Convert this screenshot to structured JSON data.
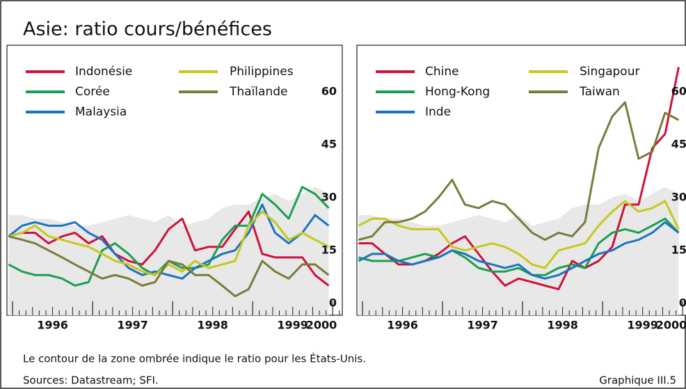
{
  "title": "Asie: ratio cours/bénéfices",
  "note": "Le contour de la zone ombrée indique le ratio pour les États-Unis.",
  "sources": "Sources: Datastream; SFI.",
  "figure_label": "Graphique III.5",
  "chart_data": [
    {
      "type": "line",
      "x": [
        1995.95,
        1996.12,
        1996.28,
        1996.45,
        1996.62,
        1996.78,
        1996.95,
        1997.12,
        1997.28,
        1997.45,
        1997.62,
        1997.78,
        1997.95,
        1998.12,
        1998.28,
        1998.45,
        1998.62,
        1998.78,
        1998.95,
        1999.12,
        1999.28,
        1999.45,
        1999.62,
        1999.78,
        1999.95
      ],
      "xlim": [
        1995.93,
        2000.12
      ],
      "xticks": [
        {
          "value": 1996,
          "label": "1996"
        },
        {
          "value": 1997,
          "label": "1997"
        },
        {
          "value": 1998,
          "label": "1998"
        },
        {
          "value": 1999,
          "label": "1999"
        },
        {
          "value": 2000,
          "label": "2000"
        }
      ],
      "ylim": [
        -3.4,
        73.2
      ],
      "yticks": [
        0,
        15,
        30,
        45,
        60
      ],
      "shaded_area": {
        "color": "#e8e8e8",
        "values": [
          25,
          25,
          24,
          24,
          23,
          22,
          22,
          23,
          24,
          25,
          24,
          23,
          25,
          22,
          23,
          24,
          27,
          28,
          28,
          30,
          31,
          29,
          31,
          33,
          31
        ]
      },
      "series": [
        {
          "name": "Indonésie",
          "color": "#d0103a",
          "values": [
            19,
            20,
            20,
            17,
            19,
            20,
            17,
            19,
            14,
            12,
            11,
            15,
            21,
            24,
            15,
            16,
            16,
            21,
            26,
            14,
            13,
            13,
            13,
            8,
            5
          ]
        },
        {
          "name": "Corée",
          "color": "#1a9e50",
          "values": [
            11,
            9,
            8,
            8,
            7,
            5,
            6,
            15,
            17,
            14,
            10,
            8,
            12,
            10,
            10,
            11,
            18,
            22,
            22,
            31,
            28,
            24,
            33,
            31,
            27
          ]
        },
        {
          "name": "Malaysia",
          "color": "#1a74c0",
          "values": [
            19,
            22,
            23,
            22,
            22,
            23,
            20,
            18,
            14,
            10,
            8,
            9,
            8,
            7,
            10,
            12,
            14,
            15,
            20,
            28,
            20,
            17,
            20,
            25,
            22
          ]
        },
        {
          "name": "Philippines",
          "color": "#c7c81a",
          "values": [
            19,
            20,
            22,
            19,
            18,
            17,
            16,
            14,
            12,
            11,
            9,
            8,
            11,
            9,
            12,
            10,
            11,
            12,
            22,
            26,
            23,
            18,
            20,
            18,
            16
          ]
        },
        {
          "name": "Thaïlande",
          "color": "#7a7a3a",
          "values": [
            19,
            18,
            17,
            15,
            13,
            11,
            9,
            7,
            8,
            7,
            5,
            6,
            12,
            11,
            8,
            8,
            5,
            2,
            4,
            12,
            9,
            7,
            11,
            11,
            8
          ]
        }
      ]
    },
    {
      "type": "line",
      "x": [
        1995.95,
        1996.12,
        1996.28,
        1996.45,
        1996.62,
        1996.78,
        1996.95,
        1997.12,
        1997.28,
        1997.45,
        1997.62,
        1997.78,
        1997.95,
        1998.12,
        1998.28,
        1998.45,
        1998.62,
        1998.78,
        1998.95,
        1999.12,
        1999.28,
        1999.45,
        1999.62,
        1999.78,
        1999.95
      ],
      "xlim": [
        1995.93,
        2000.12
      ],
      "xticks": [
        {
          "value": 1996,
          "label": "1996"
        },
        {
          "value": 1997,
          "label": "1997"
        },
        {
          "value": 1998,
          "label": "1998"
        },
        {
          "value": 1999,
          "label": "1999"
        },
        {
          "value": 2000,
          "label": "2000"
        }
      ],
      "ylim": [
        -3.4,
        73.2
      ],
      "yticks": [
        0,
        15,
        30,
        45,
        60
      ],
      "shaded_area": {
        "color": "#e8e8e8",
        "values": [
          25,
          25,
          24,
          24,
          23,
          22,
          22,
          23,
          24,
          25,
          24,
          23,
          25,
          22,
          23,
          24,
          27,
          28,
          28,
          30,
          31,
          29,
          31,
          33,
          31
        ]
      },
      "series": [
        {
          "name": "Chine",
          "color": "#d0103a",
          "values": [
            17,
            17,
            14,
            11,
            11,
            12,
            14,
            17,
            19,
            14,
            9,
            5,
            7,
            6,
            5,
            4,
            12,
            10,
            12,
            16,
            28,
            28,
            44,
            48,
            67
          ]
        },
        {
          "name": "Hong-Kong",
          "color": "#1a9e50",
          "values": [
            13,
            12,
            12,
            12,
            13,
            14,
            13,
            15,
            13,
            10,
            9,
            9,
            10,
            8,
            8,
            10,
            11,
            10,
            17,
            20,
            21,
            20,
            22,
            24,
            20
          ]
        },
        {
          "name": "Inde",
          "color": "#1a74c0",
          "values": [
            12,
            14,
            14,
            12,
            11,
            12,
            13,
            15,
            14,
            12,
            11,
            10,
            11,
            8,
            7,
            8,
            10,
            12,
            14,
            15,
            17,
            18,
            20,
            23,
            20
          ]
        },
        {
          "name": "Singapour",
          "color": "#c7c81a",
          "values": [
            22,
            24,
            24,
            22,
            21,
            21,
            21,
            16,
            15,
            16,
            17,
            16,
            14,
            11,
            10,
            15,
            16,
            17,
            22,
            26,
            29,
            26,
            27,
            29,
            21
          ]
        },
        {
          "name": "Taiwan",
          "color": "#7a7a3a",
          "values": [
            18,
            19,
            23,
            23,
            24,
            26,
            30,
            35,
            28,
            27,
            29,
            28,
            24,
            20,
            18,
            20,
            19,
            23,
            44,
            53,
            57,
            41,
            43,
            54,
            52
          ]
        }
      ]
    }
  ]
}
